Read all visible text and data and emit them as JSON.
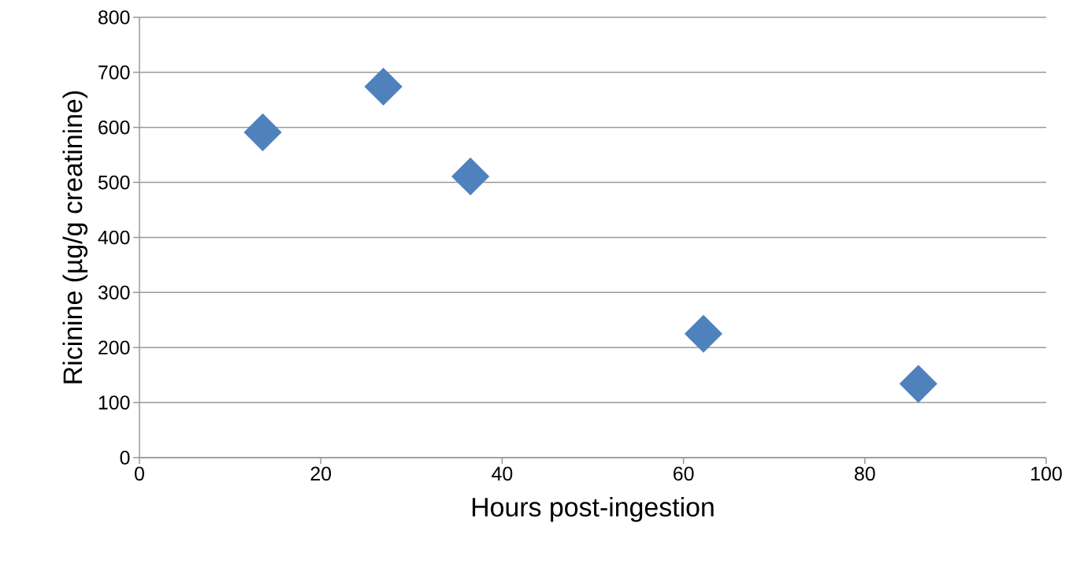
{
  "chart_data": {
    "type": "scatter",
    "xlabel": "Hours post-ingestion",
    "ylabel": "Ricinine (µg/g creatinine)",
    "x": [
      13.6,
      26.9,
      36.5,
      62.2,
      85.9
    ],
    "values": [
      591,
      674,
      511,
      225,
      134
    ],
    "color": "#4f81bd",
    "marker": "diamond",
    "xlim": [
      0,
      100
    ],
    "xticks": [
      0,
      20,
      40,
      60,
      80,
      100
    ],
    "ylim": [
      0,
      800
    ],
    "yticks": [
      0,
      100,
      200,
      300,
      400,
      500,
      600,
      700,
      800
    ],
    "grid": "y"
  }
}
